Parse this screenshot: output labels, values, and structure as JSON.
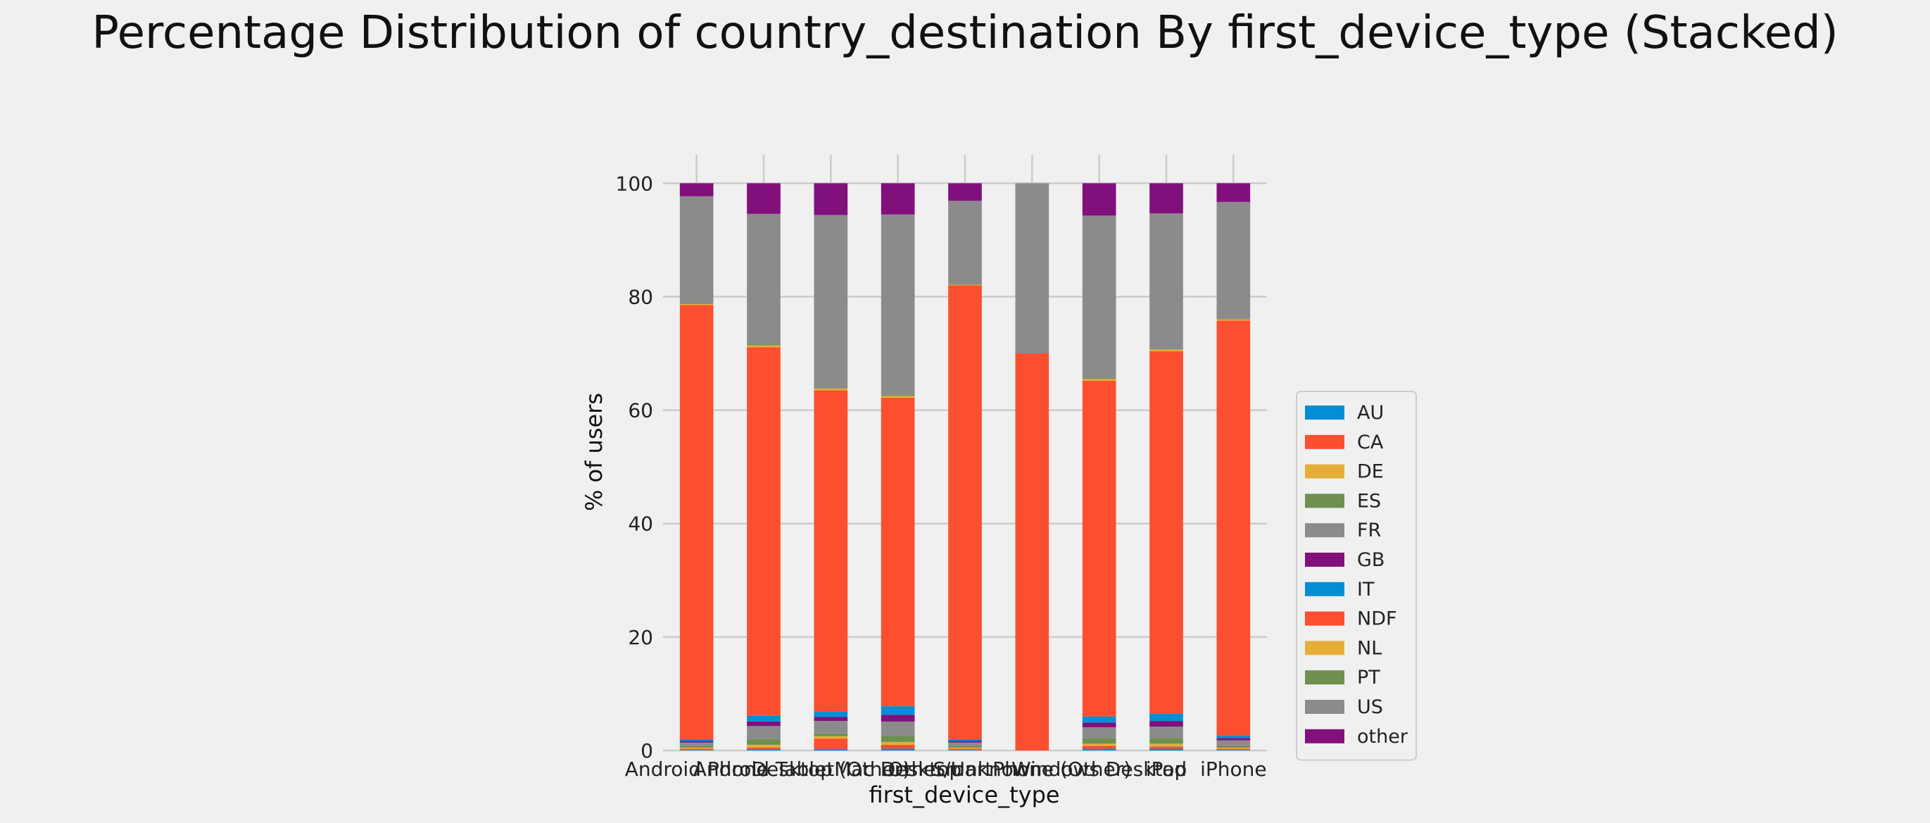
{
  "chart_data": {
    "type": "bar",
    "stacked": true,
    "title": "Percentage Distribution of country_destination By first_device_type (Stacked)",
    "xlabel": "first_device_type",
    "ylabel": "% of users",
    "ylim": [
      0,
      105
    ],
    "yticks": [
      0,
      20,
      40,
      60,
      80,
      100
    ],
    "grid": true,
    "legend_position": "right",
    "categories": [
      "Android Phone",
      "Android Tablet",
      "Desktop (Other)",
      "Mac Desktop",
      "Other/Unknown",
      "SmartPhone (Other)",
      "Windows Desktop",
      "iPad",
      "iPhone"
    ],
    "series": [
      {
        "name": "AU",
        "color": "#008fd5",
        "values": [
          0.1,
          0.2,
          0.3,
          0.3,
          0.1,
          0.0,
          0.3,
          0.3,
          0.1
        ]
      },
      {
        "name": "CA",
        "color": "#fc4f30",
        "values": [
          0.2,
          0.3,
          1.8,
          0.7,
          0.2,
          0.0,
          0.5,
          0.4,
          0.2
        ]
      },
      {
        "name": "DE",
        "color": "#e5ae38",
        "values": [
          0.2,
          0.5,
          0.4,
          0.5,
          0.2,
          0.0,
          0.4,
          0.5,
          0.2
        ]
      },
      {
        "name": "ES",
        "color": "#6d904f",
        "values": [
          0.3,
          1.0,
          0.5,
          1.1,
          0.3,
          0.0,
          1.0,
          1.0,
          0.4
        ]
      },
      {
        "name": "FR",
        "color": "#8b8b8b",
        "values": [
          0.6,
          2.3,
          2.2,
          2.5,
          0.6,
          0.0,
          1.9,
          2.0,
          0.9
        ]
      },
      {
        "name": "GB",
        "color": "#810f7c",
        "values": [
          0.3,
          0.8,
          0.7,
          1.2,
          0.3,
          0.0,
          0.8,
          1.0,
          0.4
        ]
      },
      {
        "name": "IT",
        "color": "#008fd5",
        "values": [
          0.3,
          1.0,
          1.0,
          1.5,
          0.3,
          0.0,
          1.1,
          1.3,
          0.4
        ]
      },
      {
        "name": "NDF",
        "color": "#fc4f30",
        "values": [
          76.5,
          65.0,
          56.6,
          54.4,
          80.0,
          70.0,
          59.2,
          63.9,
          73.2
        ]
      },
      {
        "name": "NL",
        "color": "#e5ae38",
        "values": [
          0.2,
          0.3,
          0.3,
          0.3,
          0.1,
          0.0,
          0.3,
          0.3,
          0.2
        ]
      },
      {
        "name": "PT",
        "color": "#6d904f",
        "values": [
          0.1,
          0.2,
          0.1,
          0.2,
          0.1,
          0.0,
          0.2,
          0.1,
          0.1
        ]
      },
      {
        "name": "US",
        "color": "#8b8b8b",
        "values": [
          18.9,
          23.0,
          30.5,
          31.8,
          14.7,
          30.0,
          28.6,
          23.9,
          20.6
        ]
      },
      {
        "name": "other",
        "color": "#810f7c",
        "values": [
          2.3,
          5.4,
          5.6,
          5.5,
          3.1,
          0.0,
          5.7,
          5.3,
          3.3
        ]
      }
    ]
  }
}
